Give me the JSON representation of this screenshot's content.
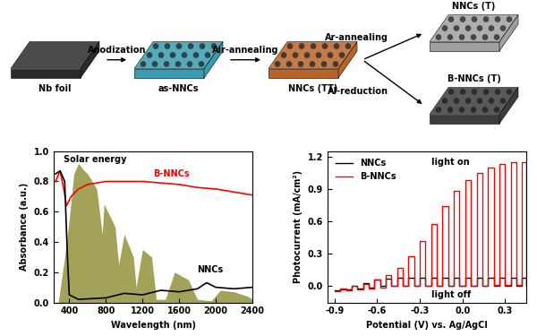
{
  "diagram": {
    "nodes": [
      {
        "label": "Nb foil"
      },
      {
        "label": "as-NNCs"
      },
      {
        "label": "NNCs (TT)"
      },
      {
        "label": "NNCs (T)"
      },
      {
        "label": "B-NNCs (T)"
      }
    ],
    "edges": [
      {
        "from": 0,
        "to": 1,
        "label": "Anodization"
      },
      {
        "from": 1,
        "to": 2,
        "label": "Air-annealing"
      },
      {
        "from": 2,
        "to": 3,
        "label": "Ar-annealing"
      },
      {
        "from": 2,
        "to": 4,
        "label": "Al-reduction"
      }
    ]
  },
  "chart_data": [
    {
      "type": "line",
      "xlabel": "Wavelength (nm)",
      "ylabel": "Absorbance (a.u.)",
      "xlim": [
        230,
        2400
      ],
      "xticks": [
        400,
        800,
        1200,
        1600,
        2000,
        2400
      ],
      "ylim": [
        0,
        1.0
      ],
      "yticks": [
        {
          "value": 0.0,
          "label": "0.0"
        },
        0.2,
        0.4,
        0.6,
        0.8,
        {
          "value": 1.0,
          "label": "1.0"
        }
      ],
      "series": [
        {
          "name": "Solar energy",
          "type": "area",
          "color": "#8b8b2e",
          "x": [
            280,
            350,
            400,
            450,
            500,
            550,
            600,
            700,
            760,
            780,
            900,
            940,
            1000,
            1100,
            1130,
            1200,
            1300,
            1350,
            1450,
            1550,
            1700,
            1800,
            1950,
            2050,
            2200,
            2350,
            2400
          ],
          "values": [
            0.0,
            0.3,
            0.55,
            0.85,
            0.92,
            0.88,
            0.85,
            0.75,
            0.45,
            0.65,
            0.5,
            0.25,
            0.45,
            0.3,
            0.1,
            0.35,
            0.3,
            0.02,
            0.02,
            0.2,
            0.15,
            0.02,
            0.01,
            0.08,
            0.07,
            0.04,
            0.02
          ]
        },
        {
          "name": "B-NNCs",
          "type": "line",
          "color": "#ff0000",
          "x": [
            250,
            300,
            340,
            370,
            420,
            500,
            600,
            800,
            1000,
            1200,
            1400,
            1600,
            1800,
            2000,
            2200,
            2400
          ],
          "values": [
            0.8,
            0.87,
            0.75,
            0.64,
            0.7,
            0.75,
            0.78,
            0.8,
            0.8,
            0.8,
            0.79,
            0.78,
            0.76,
            0.75,
            0.73,
            0.71
          ]
        },
        {
          "name": "NNCs",
          "type": "line",
          "color": "#000000",
          "x": [
            250,
            300,
            350,
            380,
            400,
            500,
            800,
            1000,
            1200,
            1400,
            1600,
            1800,
            1900,
            2000,
            2200,
            2400
          ],
          "values": [
            0.85,
            0.87,
            0.8,
            0.3,
            0.05,
            0.02,
            0.03,
            0.06,
            0.05,
            0.08,
            0.07,
            0.09,
            0.13,
            0.1,
            0.09,
            0.1
          ]
        }
      ]
    },
    {
      "type": "line",
      "xlabel": "Potential (V) vs. Ag/AgCl",
      "ylabel": "Photocurrent (mA/cm²)",
      "annotations": [
        "light on",
        "light off"
      ],
      "legend": "upper left",
      "xlim": [
        -0.95,
        0.45
      ],
      "xticks": [
        -0.9,
        -0.6,
        -0.3,
        {
          "value": 0.0,
          "label": "0.0"
        },
        0.3
      ],
      "ylim": [
        -0.15,
        1.25
      ],
      "yticks": [
        {
          "value": 0.0,
          "label": "0.0"
        },
        0.3,
        0.6,
        0.9,
        1.2
      ],
      "x": [
        -0.9,
        -0.86,
        -0.86,
        -0.82,
        -0.82,
        -0.78,
        -0.78,
        -0.74,
        -0.74,
        -0.7,
        -0.7,
        -0.66,
        -0.66,
        -0.62,
        -0.62,
        -0.58,
        -0.58,
        -0.54,
        -0.54,
        -0.5,
        -0.5,
        -0.46,
        -0.46,
        -0.42,
        -0.42,
        -0.38,
        -0.38,
        -0.34,
        -0.34,
        -0.3,
        -0.3,
        -0.26,
        -0.26,
        -0.22,
        -0.22,
        -0.18,
        -0.18,
        -0.14,
        -0.14,
        -0.1,
        -0.1,
        -0.06,
        -0.06,
        -0.02,
        -0.02,
        0.02,
        0.02,
        0.06,
        0.06,
        0.1,
        0.1,
        0.14,
        0.14,
        0.18,
        0.18,
        0.22,
        0.22,
        0.26,
        0.26,
        0.3,
        0.3,
        0.34,
        0.34,
        0.38,
        0.38,
        0.42,
        0.42,
        0.45,
        0.45
      ],
      "series": [
        {
          "name": "NNCs",
          "color": "#000000",
          "values": [
            -0.04,
            -0.04,
            -0.03,
            -0.03,
            -0.03,
            -0.03,
            0.0,
            0.0,
            -0.02,
            -0.02,
            0.03,
            0.03,
            -0.01,
            -0.01,
            0.06,
            0.06,
            0.0,
            0.0,
            0.07,
            0.07,
            0.0,
            0.0,
            0.08,
            0.08,
            0.0,
            0.0,
            0.08,
            0.08,
            0.0,
            0.0,
            0.08,
            0.08,
            0.0,
            0.0,
            0.08,
            0.08,
            0.0,
            0.0,
            0.08,
            0.08,
            0.0,
            0.0,
            0.08,
            0.08,
            0.0,
            0.0,
            0.08,
            0.08,
            0.0,
            0.0,
            0.08,
            0.08,
            0.0,
            0.0,
            0.08,
            0.08,
            0.0,
            0.0,
            0.08,
            0.08,
            0.0,
            0.0,
            0.08,
            0.08,
            0.0,
            0.0,
            0.08,
            0.08,
            0.0
          ]
        },
        {
          "name": "B-NNCs",
          "color": "#ff0000",
          "values": [
            -0.05,
            -0.05,
            -0.02,
            -0.02,
            -0.04,
            -0.04,
            0.0,
            0.0,
            -0.03,
            -0.03,
            0.02,
            0.02,
            -0.02,
            -0.02,
            0.06,
            0.06,
            -0.01,
            -0.01,
            0.1,
            0.1,
            0.0,
            0.0,
            0.17,
            0.17,
            0.0,
            0.0,
            0.28,
            0.28,
            0.0,
            0.0,
            0.42,
            0.42,
            0.0,
            0.0,
            0.58,
            0.58,
            0.0,
            0.0,
            0.74,
            0.74,
            0.0,
            0.0,
            0.88,
            0.88,
            0.0,
            0.0,
            0.98,
            0.98,
            0.0,
            0.0,
            1.05,
            1.05,
            0.0,
            0.0,
            1.1,
            1.1,
            0.01,
            0.01,
            1.13,
            1.13,
            0.01,
            0.01,
            1.15,
            1.15,
            0.01,
            0.01,
            1.15,
            1.15,
            0.01
          ]
        }
      ]
    }
  ]
}
